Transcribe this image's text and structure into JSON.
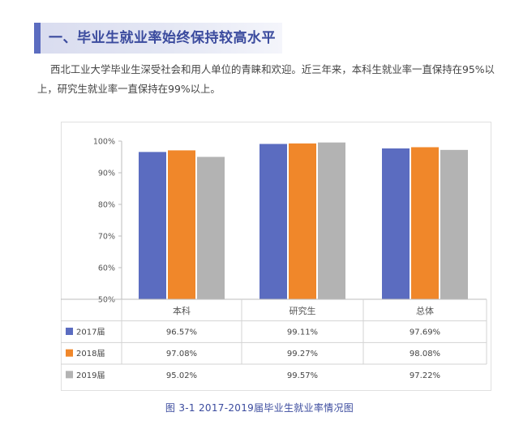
{
  "section": {
    "title": "一、毕业生就业率始终保持较高水平"
  },
  "intro": "西北工业大学毕业生深受社会和用人单位的青睐和欢迎。近三年来，本科生就业率一直保持在95%以上，研究生就业率一直保持在99%以上。",
  "caption": "图 3-1   2017-2019届毕业生就业率情况图",
  "chart_data": {
    "type": "bar",
    "title": "",
    "xlabel": "",
    "ylabel": "",
    "categories": [
      "本科",
      "研究生",
      "总体"
    ],
    "ylim": [
      50,
      100
    ],
    "yticks": [
      50,
      60,
      70,
      80,
      90,
      100
    ],
    "ytick_labels": [
      "50%",
      "60%",
      "70%",
      "80%",
      "90%",
      "100%"
    ],
    "grid": false,
    "legend": "data-table-left",
    "series": [
      {
        "name": "2017届",
        "color": "#5b6cc0",
        "values": [
          96.57,
          99.11,
          97.69
        ],
        "labels": [
          "96.57%",
          "99.11%",
          "97.69%"
        ]
      },
      {
        "name": "2018届",
        "color": "#f0872a",
        "values": [
          97.08,
          99.27,
          98.08
        ],
        "labels": [
          "97.08%",
          "99.27%",
          "98.08%"
        ]
      },
      {
        "name": "2019届",
        "color": "#b3b3b3",
        "values": [
          95.02,
          99.57,
          97.22
        ],
        "labels": [
          "95.02%",
          "99.57%",
          "97.22%"
        ]
      }
    ]
  }
}
